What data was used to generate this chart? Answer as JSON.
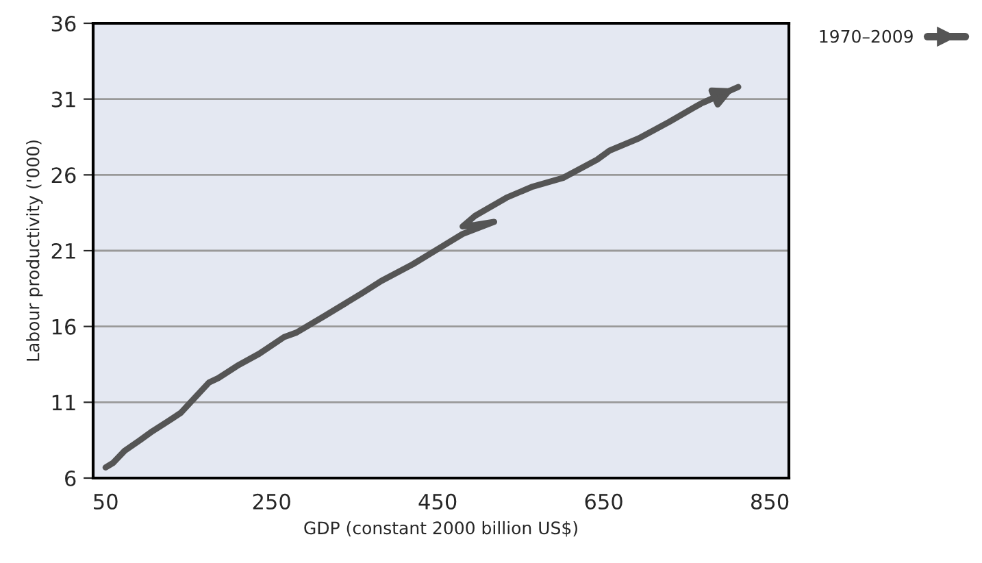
{
  "chart_data": {
    "type": "line",
    "xlabel": "GDP (constant 2000 billion US$)",
    "ylabel": "Labour productivity ('000)",
    "xlim": [
      35,
      873
    ],
    "xticks": [
      50,
      250,
      450,
      650,
      850
    ],
    "ylim": [
      6,
      36
    ],
    "yticks": [
      6,
      11,
      16,
      21,
      26,
      31,
      36
    ],
    "grid": "y",
    "legend": "top right",
    "marker": "none",
    "line_style": "solid",
    "series": [
      {
        "name": "1970–2009",
        "color": "#555555",
        "x": [
          50,
          59,
          73,
          91.5,
          106.6,
          124,
          140.6,
          155.7,
          174.5,
          185.8,
          208.5,
          235,
          265,
          280,
          314,
          359,
          382,
          420,
          450,
          480,
          518,
          495,
          480,
          495,
          533,
          563,
          601,
          642,
          657,
          692,
          729,
          767,
          812
        ],
        "values": [
          6.7,
          7.0,
          7.8,
          8.5,
          9.1,
          9.7,
          10.3,
          11.2,
          12.3,
          12.6,
          13.4,
          14.2,
          15.3,
          15.6,
          16.7,
          18.2,
          19.0,
          20.1,
          21.1,
          22.1,
          22.9,
          22.7,
          22.6,
          23.3,
          24.5,
          25.2,
          25.8,
          27.0,
          27.6,
          28.4,
          29.5,
          30.7,
          31.8
        ]
      }
    ]
  }
}
